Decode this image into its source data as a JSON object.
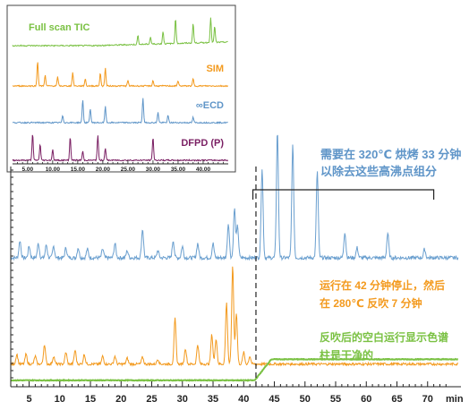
{
  "inset": {
    "traces": [
      {
        "label": "Full scan TIC",
        "color": "#7ac143"
      },
      {
        "label": "SIM",
        "color": "#f39a1e"
      },
      {
        "label": "∞ECD",
        "color": "#5f95c8"
      },
      {
        "label": "DFPD (P)",
        "color": "#7a1f63"
      }
    ],
    "ticks": [
      "5.00",
      "10.00",
      "15.00",
      "20.00",
      "25.00",
      "30.00",
      "35.00",
      "40.00"
    ]
  },
  "annotations": {
    "bake": {
      "line1": "需要在 320℃ 烘烤 33 分钟",
      "line2": "以除去这些高沸点组分",
      "color": "#5f95c8"
    },
    "stop": {
      "line1": "运行在 42 分钟停止，然后",
      "line2": "在 280℃ 反吹 7 分钟",
      "color": "#f39a1e"
    },
    "blank": {
      "line1": "反吹后的空白运行显示色谱",
      "line2": "柱是干净的",
      "color": "#7ac143"
    }
  },
  "chart_data": {
    "type": "line",
    "xlabel": "min",
    "x_ticks": [
      5,
      10,
      15,
      20,
      25,
      30,
      35,
      40,
      45,
      50,
      55,
      60,
      65,
      70
    ],
    "xlim": [
      2,
      75
    ],
    "stop_time": 42,
    "bracket_range": [
      41.5,
      71
    ],
    "series": [
      {
        "color": "#6a9fcf",
        "baseline": 0.05,
        "peaks": [
          [
            3.5,
            0.12
          ],
          [
            5,
            0.08
          ],
          [
            6.5,
            0.1
          ],
          [
            7.8,
            0.09
          ],
          [
            9,
            0.08
          ],
          [
            11,
            0.07
          ],
          [
            13,
            0.07
          ],
          [
            14.5,
            0.06
          ],
          [
            17,
            0.06
          ],
          [
            19,
            0.1
          ],
          [
            21,
            0.05
          ],
          [
            23.5,
            0.2
          ],
          [
            26,
            0.05
          ],
          [
            28.5,
            0.12
          ],
          [
            30,
            0.08
          ],
          [
            32.5,
            0.1
          ],
          [
            35,
            0.1
          ],
          [
            37.5,
            0.24
          ],
          [
            38.5,
            0.34
          ],
          [
            39,
            0.22
          ],
          [
            43,
            0.62
          ],
          [
            45.5,
            0.88
          ],
          [
            48,
            0.78
          ],
          [
            52,
            0.6
          ],
          [
            56.5,
            0.18
          ],
          [
            58.5,
            0.07
          ],
          [
            63.5,
            0.17
          ],
          [
            69.5,
            0.06
          ]
        ]
      },
      {
        "color": "#f39a1e",
        "baseline": 0.03,
        "peaks": [
          [
            3,
            0.1
          ],
          [
            4.5,
            0.1
          ],
          [
            6,
            0.08
          ],
          [
            7.5,
            0.2
          ],
          [
            9,
            0.08
          ],
          [
            11,
            0.12
          ],
          [
            12.5,
            0.14
          ],
          [
            14,
            0.1
          ],
          [
            17,
            0.08
          ],
          [
            19,
            0.08
          ],
          [
            21,
            0.06
          ],
          [
            23.5,
            0.07
          ],
          [
            26,
            0.05
          ],
          [
            28.8,
            0.46
          ],
          [
            30.5,
            0.16
          ],
          [
            32.5,
            0.2
          ],
          [
            34.8,
            0.3
          ],
          [
            35.5,
            0.26
          ],
          [
            37.2,
            0.62
          ],
          [
            38.2,
            1.0
          ],
          [
            38.8,
            0.52
          ],
          [
            40,
            0.12
          ],
          [
            41,
            0.08
          ]
        ]
      },
      {
        "color": "#7ac143",
        "baseline": 0.05,
        "step_start": 41.8,
        "step_end": 44.5,
        "step_level": 0.95
      }
    ]
  }
}
